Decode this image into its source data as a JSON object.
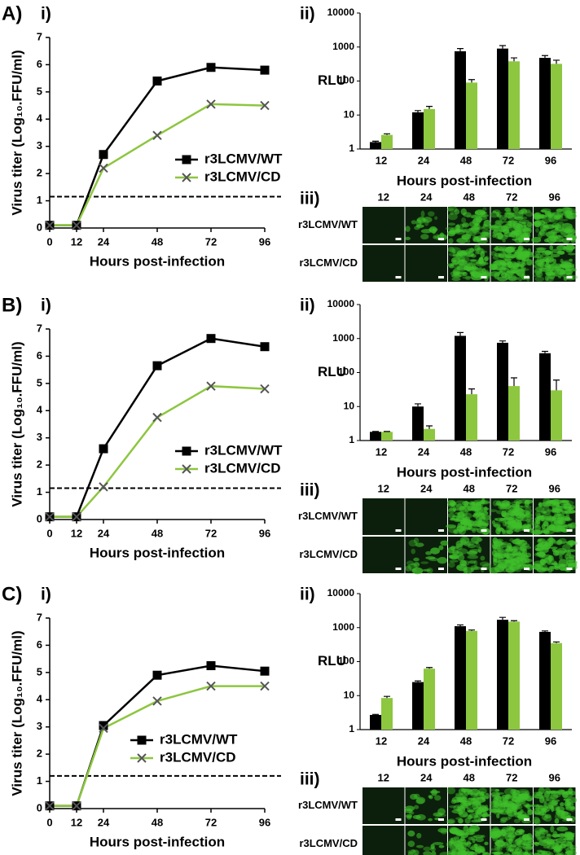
{
  "chart_data": [
    {
      "type": "line",
      "label": "i)",
      "xlabel": "Hours post-infection",
      "ylabel": "Virus titer (Log₁₀.FFU/ml)",
      "x": [
        0,
        12,
        24,
        48,
        72,
        96
      ],
      "xlim": [
        0,
        96
      ],
      "xticks": [
        0,
        12,
        24,
        48,
        72,
        96
      ],
      "ylim": [
        0,
        7
      ],
      "yticks": [
        0,
        1,
        2,
        3,
        4,
        5,
        6,
        7
      ],
      "reference_line": 1.15,
      "legend": "lower right",
      "series": [
        {
          "name": "r3LCMV/WT",
          "color": "#000000",
          "marker": "square",
          "values": [
            0.1,
            0.1,
            2.7,
            5.4,
            5.9,
            5.8
          ]
        },
        {
          "name": "r3LCMV/CD",
          "color": "#8dc63f",
          "marker": "x",
          "values": [
            0.1,
            0.1,
            2.2,
            3.4,
            4.55,
            4.5
          ]
        }
      ]
    },
    {
      "type": "bar",
      "label": "ii)",
      "xlabel": "Hours post-infection",
      "ylabel": "RLU",
      "log_scale": true,
      "categories": [
        "12",
        "24",
        "48",
        "72",
        "96"
      ],
      "ylim": [
        1,
        10000
      ],
      "yticks": [
        1,
        10,
        100,
        1000,
        10000
      ],
      "series": [
        {
          "color": "#000000",
          "values": [
            1.6,
            12,
            750,
            900,
            480
          ],
          "errors": [
            0.1,
            1.5,
            150,
            200,
            80
          ]
        },
        {
          "color": "#8dc63f",
          "values": [
            2.6,
            15,
            90,
            380,
            320
          ],
          "errors": [
            0.2,
            3,
            20,
            100,
            90
          ]
        }
      ]
    },
    {
      "type": "line",
      "label": "i)",
      "xlabel": "Hours post-infection",
      "ylabel": "Virus titer (Log₁₀.FFU/ml)",
      "x": [
        0,
        12,
        24,
        48,
        72,
        96
      ],
      "xlim": [
        0,
        96
      ],
      "xticks": [
        0,
        12,
        24,
        48,
        72,
        96
      ],
      "ylim": [
        0,
        7
      ],
      "yticks": [
        0,
        1,
        2,
        3,
        4,
        5,
        6,
        7
      ],
      "reference_line": 1.15,
      "legend": "lower right",
      "series": [
        {
          "name": "r3LCMV/WT",
          "color": "#000000",
          "marker": "square",
          "values": [
            0.1,
            0.1,
            2.6,
            5.65,
            6.65,
            6.35
          ]
        },
        {
          "name": "r3LCMV/CD",
          "color": "#8dc63f",
          "marker": "x",
          "values": [
            0.1,
            0.1,
            1.2,
            3.75,
            4.9,
            4.8
          ]
        }
      ]
    },
    {
      "type": "bar",
      "label": "ii)",
      "xlabel": "Hours post-infection",
      "ylabel": "RLU",
      "log_scale": true,
      "categories": [
        "12",
        "24",
        "48",
        "72",
        "96"
      ],
      "ylim": [
        1,
        10000
      ],
      "yticks": [
        1,
        10,
        100,
        1000,
        10000
      ],
      "series": [
        {
          "color": "#000000",
          "values": [
            1.8,
            10,
            1200,
            750,
            370
          ],
          "errors": [
            0.05,
            2,
            300,
            100,
            50
          ]
        },
        {
          "color": "#8dc63f",
          "values": [
            1.8,
            2.2,
            23,
            40,
            30
          ],
          "errors": [
            0.05,
            0.5,
            10,
            30,
            30
          ]
        }
      ]
    },
    {
      "type": "line",
      "label": "i)",
      "xlabel": "Hours post-infection",
      "ylabel": "Virus titer (Log₁₀.FFU/ml)",
      "x": [
        0,
        12,
        24,
        48,
        72,
        96
      ],
      "xlim": [
        0,
        96
      ],
      "xticks": [
        0,
        12,
        24,
        48,
        72,
        96
      ],
      "ylim": [
        0,
        7
      ],
      "yticks": [
        0,
        1,
        2,
        3,
        4,
        5,
        6,
        7
      ],
      "reference_line": 1.2,
      "legend": "lower center",
      "series": [
        {
          "name": "r3LCMV/WT",
          "color": "#000000",
          "marker": "square",
          "values": [
            0.1,
            0.1,
            3.05,
            4.9,
            5.25,
            5.05
          ]
        },
        {
          "name": "r3LCMV/CD",
          "color": "#8dc63f",
          "marker": "x",
          "values": [
            0.1,
            0.1,
            2.95,
            3.95,
            4.5,
            4.5
          ]
        }
      ]
    },
    {
      "type": "bar",
      "label": "ii)",
      "xlabel": "Hours post-infection",
      "ylabel": "RLU",
      "log_scale": true,
      "categories": [
        "12",
        "24",
        "48",
        "72",
        "96"
      ],
      "ylim": [
        1,
        10000
      ],
      "yticks": [
        1,
        10,
        100,
        1000,
        10000
      ],
      "series": [
        {
          "color": "#000000",
          "values": [
            2.7,
            25,
            1100,
            1700,
            750
          ],
          "errors": [
            0.1,
            2,
            100,
            300,
            50
          ]
        },
        {
          "color": "#8dc63f",
          "values": [
            8.5,
            62,
            800,
            1500,
            350
          ],
          "errors": [
            1,
            5,
            50,
            100,
            30
          ]
        }
      ]
    }
  ],
  "panels": [
    {
      "label": "A)",
      "images": {
        "label": "iii)",
        "columns": [
          "12",
          "24",
          "48",
          "72",
          "96"
        ],
        "rows": [
          "r3LCMV/WT",
          "r3LCMV/CD"
        ]
      }
    },
    {
      "label": "B)",
      "images": {
        "label": "iii)",
        "columns": [
          "12",
          "24",
          "48",
          "72",
          "96"
        ],
        "rows": [
          "r3LCMV/WT",
          "r3LCMV/CD"
        ]
      }
    },
    {
      "label": "C)",
      "images": {
        "label": "iii)",
        "columns": [
          "12",
          "24",
          "48",
          "72",
          "96"
        ],
        "rows": [
          "r3LCMV/WT",
          "r3LCMV/CD"
        ]
      }
    }
  ]
}
